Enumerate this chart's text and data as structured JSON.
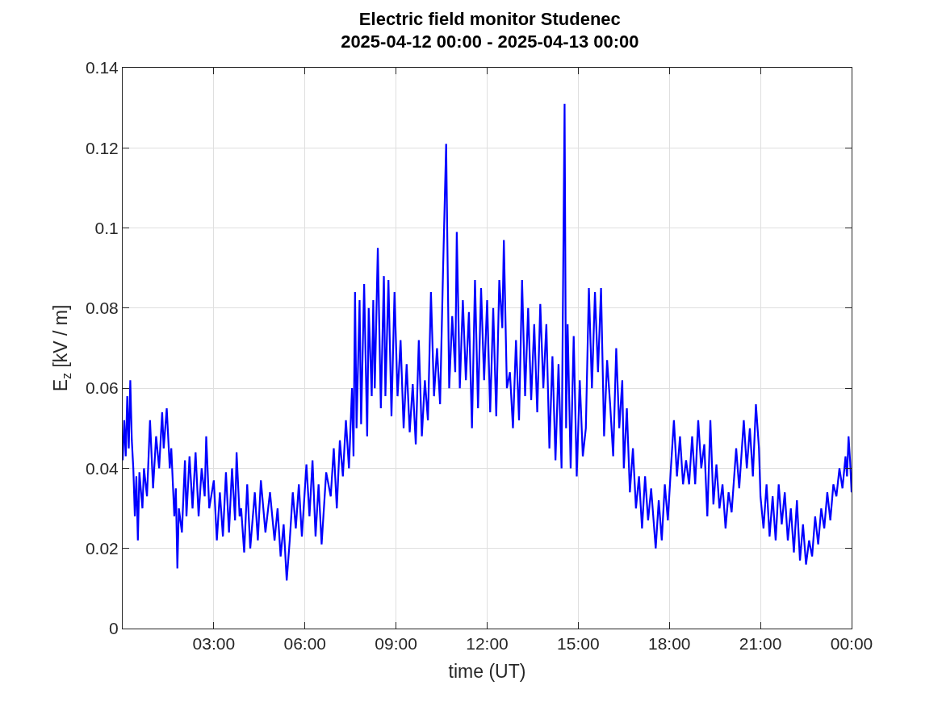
{
  "chart_data": {
    "type": "line",
    "title": "Electric field monitor Studenec\n2025-04-12 00:00 - 2025-04-13 00:00",
    "xlabel": "time (UT)",
    "ylabel": "E$_{z}$ [kV / m]",
    "xlim": [
      0,
      24
    ],
    "xticks": [
      {
        "value": 3,
        "label": "03:00"
      },
      {
        "value": 6,
        "label": "06:00"
      },
      {
        "value": 9,
        "label": "09:00"
      },
      {
        "value": 12,
        "label": "12:00"
      },
      {
        "value": 15,
        "label": "15:00"
      },
      {
        "value": 18,
        "label": "18:00"
      },
      {
        "value": 21,
        "label": "21:00"
      },
      {
        "value": 24,
        "label": "00:00"
      }
    ],
    "ylim": [
      0,
      0.14
    ],
    "yticks": [
      0,
      0.02,
      0.04,
      0.06,
      0.08,
      0.1,
      0.12,
      0.14
    ],
    "grid": true,
    "line_style": "solid",
    "marker": "none",
    "series": [
      {
        "color": "#0000ff",
        "x": [
          0.0,
          0.05,
          0.1,
          0.15,
          0.2,
          0.25,
          0.3,
          0.35,
          0.4,
          0.45,
          0.5,
          0.55,
          0.65,
          0.7,
          0.8,
          0.9,
          1.0,
          1.1,
          1.2,
          1.3,
          1.35,
          1.45,
          1.55,
          1.6,
          1.7,
          1.75,
          1.8,
          1.85,
          1.95,
          2.05,
          2.1,
          2.2,
          2.3,
          2.4,
          2.5,
          2.6,
          2.7,
          2.75,
          2.85,
          3.0,
          3.1,
          3.2,
          3.3,
          3.4,
          3.5,
          3.6,
          3.7,
          3.75,
          3.85,
          3.9,
          4.0,
          4.1,
          4.2,
          4.35,
          4.45,
          4.55,
          4.7,
          4.85,
          5.0,
          5.1,
          5.2,
          5.3,
          5.4,
          5.5,
          5.6,
          5.7,
          5.8,
          5.9,
          6.05,
          6.15,
          6.25,
          6.35,
          6.45,
          6.55,
          6.7,
          6.85,
          6.95,
          7.05,
          7.15,
          7.25,
          7.35,
          7.45,
          7.55,
          7.6,
          7.65,
          7.7,
          7.8,
          7.85,
          7.95,
          8.05,
          8.1,
          8.2,
          8.25,
          8.3,
          8.4,
          8.5,
          8.6,
          8.65,
          8.75,
          8.85,
          8.95,
          9.05,
          9.15,
          9.25,
          9.35,
          9.45,
          9.55,
          9.65,
          9.75,
          9.85,
          9.95,
          10.05,
          10.15,
          10.25,
          10.35,
          10.45,
          10.55,
          10.65,
          10.75,
          10.85,
          10.95,
          11.0,
          11.1,
          11.2,
          11.3,
          11.4,
          11.5,
          11.6,
          11.7,
          11.8,
          11.9,
          12.0,
          12.1,
          12.2,
          12.3,
          12.4,
          12.5,
          12.55,
          12.65,
          12.75,
          12.85,
          12.95,
          13.05,
          13.15,
          13.25,
          13.35,
          13.45,
          13.55,
          13.65,
          13.75,
          13.85,
          13.95,
          14.05,
          14.15,
          14.25,
          14.35,
          14.45,
          14.55,
          14.6,
          14.65,
          14.75,
          14.85,
          14.95,
          15.05,
          15.15,
          15.25,
          15.35,
          15.45,
          15.55,
          15.65,
          15.75,
          15.85,
          15.95,
          16.05,
          16.15,
          16.25,
          16.35,
          16.45,
          16.5,
          16.6,
          16.7,
          16.8,
          16.9,
          17.0,
          17.1,
          17.2,
          17.3,
          17.4,
          17.55,
          17.65,
          17.75,
          17.85,
          17.95,
          18.05,
          18.15,
          18.25,
          18.35,
          18.45,
          18.55,
          18.65,
          18.75,
          18.85,
          18.95,
          19.05,
          19.15,
          19.25,
          19.35,
          19.45,
          19.55,
          19.65,
          19.75,
          19.85,
          19.95,
          20.05,
          20.2,
          20.3,
          20.45,
          20.55,
          20.65,
          20.75,
          20.85,
          20.95,
          21.0,
          21.1,
          21.2,
          21.3,
          21.4,
          21.5,
          21.6,
          21.7,
          21.8,
          21.9,
          22.0,
          22.1,
          22.2,
          22.3,
          22.4,
          22.5,
          22.6,
          22.7,
          22.8,
          22.9,
          23.0,
          23.1,
          23.2,
          23.3,
          23.4,
          23.5,
          23.6,
          23.7,
          23.8,
          23.85,
          23.9,
          23.95,
          24.0
        ],
        "values": [
          0.042,
          0.052,
          0.043,
          0.058,
          0.045,
          0.062,
          0.047,
          0.04,
          0.028,
          0.038,
          0.022,
          0.039,
          0.03,
          0.04,
          0.033,
          0.052,
          0.035,
          0.048,
          0.04,
          0.054,
          0.045,
          0.055,
          0.04,
          0.045,
          0.028,
          0.035,
          0.015,
          0.03,
          0.024,
          0.042,
          0.028,
          0.043,
          0.03,
          0.044,
          0.028,
          0.04,
          0.033,
          0.048,
          0.03,
          0.037,
          0.022,
          0.034,
          0.023,
          0.039,
          0.024,
          0.04,
          0.027,
          0.044,
          0.028,
          0.03,
          0.019,
          0.036,
          0.02,
          0.034,
          0.022,
          0.037,
          0.024,
          0.034,
          0.022,
          0.03,
          0.018,
          0.026,
          0.012,
          0.022,
          0.034,
          0.025,
          0.036,
          0.023,
          0.041,
          0.028,
          0.042,
          0.023,
          0.036,
          0.021,
          0.039,
          0.033,
          0.045,
          0.03,
          0.047,
          0.038,
          0.052,
          0.04,
          0.06,
          0.043,
          0.084,
          0.05,
          0.082,
          0.051,
          0.086,
          0.048,
          0.08,
          0.058,
          0.082,
          0.06,
          0.095,
          0.055,
          0.088,
          0.058,
          0.087,
          0.053,
          0.084,
          0.058,
          0.072,
          0.05,
          0.066,
          0.049,
          0.061,
          0.046,
          0.072,
          0.048,
          0.062,
          0.052,
          0.084,
          0.058,
          0.07,
          0.056,
          0.09,
          0.121,
          0.06,
          0.078,
          0.064,
          0.099,
          0.06,
          0.082,
          0.062,
          0.079,
          0.05,
          0.087,
          0.055,
          0.085,
          0.062,
          0.082,
          0.054,
          0.08,
          0.053,
          0.087,
          0.075,
          0.097,
          0.06,
          0.064,
          0.05,
          0.072,
          0.052,
          0.087,
          0.058,
          0.08,
          0.057,
          0.076,
          0.054,
          0.081,
          0.06,
          0.076,
          0.045,
          0.068,
          0.042,
          0.066,
          0.04,
          0.131,
          0.05,
          0.076,
          0.04,
          0.073,
          0.038,
          0.062,
          0.043,
          0.05,
          0.085,
          0.06,
          0.084,
          0.064,
          0.085,
          0.048,
          0.067,
          0.056,
          0.043,
          0.07,
          0.05,
          0.062,
          0.04,
          0.055,
          0.034,
          0.045,
          0.03,
          0.038,
          0.025,
          0.038,
          0.027,
          0.035,
          0.02,
          0.032,
          0.022,
          0.036,
          0.027,
          0.04,
          0.052,
          0.038,
          0.048,
          0.036,
          0.042,
          0.036,
          0.048,
          0.036,
          0.052,
          0.04,
          0.046,
          0.028,
          0.052,
          0.031,
          0.041,
          0.03,
          0.036,
          0.025,
          0.034,
          0.029,
          0.045,
          0.035,
          0.052,
          0.04,
          0.05,
          0.038,
          0.056,
          0.045,
          0.033,
          0.025,
          0.036,
          0.023,
          0.033,
          0.022,
          0.036,
          0.026,
          0.034,
          0.022,
          0.03,
          0.019,
          0.032,
          0.017,
          0.026,
          0.016,
          0.022,
          0.018,
          0.028,
          0.021,
          0.03,
          0.025,
          0.034,
          0.027,
          0.036,
          0.033,
          0.04,
          0.035,
          0.043,
          0.038,
          0.048,
          0.042,
          0.034
        ]
      }
    ]
  }
}
